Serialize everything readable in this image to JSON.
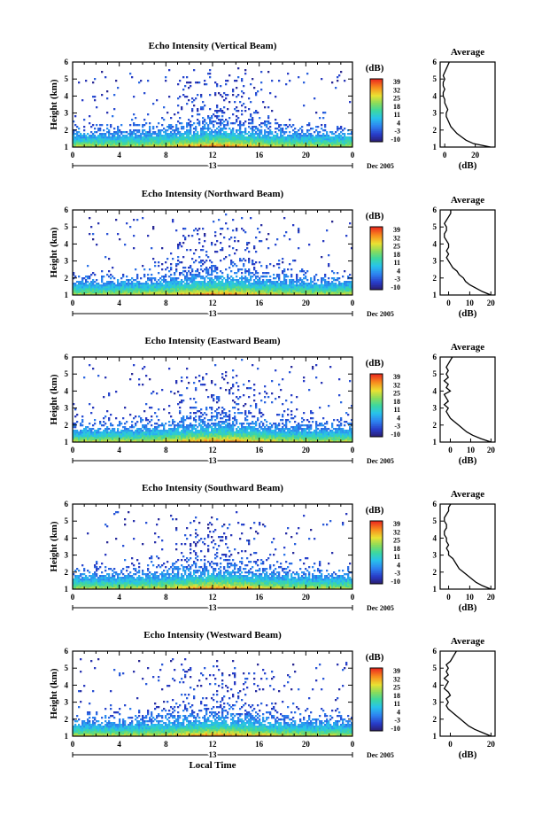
{
  "chart_data": [
    {
      "type": "heatmap",
      "title": "Echo Intensity (Vertical Beam)",
      "ylabel": "Height (km)",
      "ylim": [
        1,
        6
      ],
      "xlim": [
        0,
        24
      ],
      "xticks": [
        "0",
        "4",
        "8",
        "12",
        "16",
        "20",
        "0"
      ],
      "date_marker": "13",
      "date_label": "Dec 2005",
      "colorbar": {
        "label": "(dB)",
        "ticks": [
          "39",
          "32",
          "25",
          "18",
          "11",
          "4",
          "-3",
          "-10"
        ],
        "range": [
          -10,
          39
        ]
      },
      "average": {
        "title": "Average",
        "xlabel": "(dB)",
        "xlim": [
          -3,
          33
        ],
        "xticks": [
          "0",
          "20"
        ],
        "heights": [
          1.0,
          1.2,
          1.4,
          1.6,
          1.8,
          2.0,
          2.2,
          2.4,
          2.6,
          2.8,
          3.0,
          3.2,
          3.4,
          3.6,
          3.8,
          4.0,
          4.2,
          4.4,
          4.6,
          4.8,
          5.0,
          5.2,
          5.4,
          5.6,
          5.8,
          6.0
        ],
        "values": [
          30,
          19,
          14,
          11,
          8,
          6,
          4,
          3,
          2,
          1,
          1,
          2,
          1,
          0,
          0,
          -1,
          -1,
          0,
          -1,
          -1,
          0,
          -1,
          0,
          1,
          2,
          3
        ]
      }
    },
    {
      "type": "heatmap",
      "title": "Echo Intensity (Northward Beam)",
      "ylabel": "Height (km)",
      "ylim": [
        1,
        6
      ],
      "xlim": [
        0,
        24
      ],
      "xticks": [
        "0",
        "4",
        "8",
        "12",
        "16",
        "20",
        "0"
      ],
      "date_marker": "13",
      "date_label": "Dec 2005",
      "colorbar": {
        "label": "(dB)",
        "ticks": [
          "39",
          "32",
          "25",
          "18",
          "11",
          "4",
          "-3",
          "-10"
        ],
        "range": [
          -10,
          39
        ]
      },
      "average": {
        "title": "Average",
        "xlabel": "(dB)",
        "xlim": [
          -4,
          22
        ],
        "xticks": [
          "0",
          "10",
          "20"
        ],
        "heights": [
          1.0,
          1.2,
          1.4,
          1.6,
          1.8,
          2.0,
          2.2,
          2.4,
          2.6,
          2.8,
          3.0,
          3.2,
          3.4,
          3.6,
          3.8,
          4.0,
          4.2,
          4.4,
          4.6,
          4.8,
          5.0,
          5.2,
          5.4,
          5.6,
          5.8,
          6.0
        ],
        "values": [
          20,
          16,
          13,
          10,
          8,
          7,
          5,
          4,
          2,
          1,
          0,
          -1,
          0,
          -1,
          0,
          0,
          -1,
          -2,
          -2,
          -1,
          -1,
          -2,
          -1,
          0,
          1,
          1
        ]
      }
    },
    {
      "type": "heatmap",
      "title": "Echo Intensity (Eastward Beam)",
      "ylabel": "Height (km)",
      "ylim": [
        1,
        6
      ],
      "xlim": [
        0,
        24
      ],
      "xticks": [
        "0",
        "4",
        "8",
        "12",
        "16",
        "20",
        "0"
      ],
      "date_marker": "13",
      "date_label": "Dec 2005",
      "colorbar": {
        "label": "(dB)",
        "ticks": [
          "39",
          "32",
          "25",
          "18",
          "11",
          "4",
          "-3",
          "-10"
        ],
        "range": [
          -10,
          39
        ]
      },
      "average": {
        "title": "Average",
        "xlabel": "(dB)",
        "xlim": [
          -5,
          22
        ],
        "xticks": [
          "0",
          "10",
          "20"
        ],
        "heights": [
          1.0,
          1.2,
          1.4,
          1.6,
          1.8,
          2.0,
          2.2,
          2.4,
          2.6,
          2.8,
          3.0,
          3.2,
          3.4,
          3.6,
          3.8,
          4.0,
          4.2,
          4.4,
          4.6,
          4.8,
          5.0,
          5.2,
          5.4,
          5.6,
          5.8,
          6.0
        ],
        "values": [
          20,
          15,
          11,
          8,
          6,
          4,
          2,
          0,
          -1,
          -2,
          -1,
          -3,
          -1,
          -2,
          -3,
          0,
          -2,
          -1,
          -3,
          -1,
          -2,
          -1,
          -2,
          -1,
          0,
          1
        ]
      }
    },
    {
      "type": "heatmap",
      "title": "Echo Intensity (Southward Beam)",
      "ylabel": "Height (km)",
      "ylim": [
        1,
        6
      ],
      "xlim": [
        0,
        24
      ],
      "xticks": [
        "0",
        "4",
        "8",
        "12",
        "16",
        "20",
        "0"
      ],
      "date_marker": "13",
      "date_label": "Dec 2005",
      "colorbar": {
        "label": "(dB)",
        "ticks": [
          "39",
          "32",
          "25",
          "18",
          "11",
          "4",
          "-3",
          "-10"
        ],
        "range": [
          -10,
          39
        ]
      },
      "average": {
        "title": "Average",
        "xlabel": "(dB)",
        "xlim": [
          -4,
          22
        ],
        "xticks": [
          "0",
          "10",
          "20"
        ],
        "heights": [
          1.0,
          1.2,
          1.4,
          1.6,
          1.8,
          2.0,
          2.2,
          2.4,
          2.6,
          2.8,
          3.0,
          3.2,
          3.4,
          3.6,
          3.8,
          4.0,
          4.2,
          4.4,
          4.6,
          4.8,
          5.0,
          5.2,
          5.4,
          5.6,
          5.8,
          6.0
        ],
        "values": [
          20,
          16,
          13,
          11,
          9,
          7,
          5,
          4,
          3,
          2,
          0,
          0,
          -1,
          0,
          -1,
          -1,
          -2,
          -2,
          -1,
          -1,
          -2,
          -2,
          -1,
          0,
          0,
          1
        ]
      }
    },
    {
      "type": "heatmap",
      "title": "Echo Intensity (Westward Beam)",
      "ylabel": "Height (km)",
      "xlabel": "Local Time",
      "ylim": [
        1,
        6
      ],
      "xlim": [
        0,
        24
      ],
      "xticks": [
        "0",
        "4",
        "8",
        "12",
        "16",
        "20",
        "0"
      ],
      "date_marker": "13",
      "date_label": "Dec 2005",
      "colorbar": {
        "label": "(dB)",
        "ticks": [
          "39",
          "32",
          "25",
          "18",
          "11",
          "4",
          "-3",
          "-10"
        ],
        "range": [
          -10,
          39
        ]
      },
      "average": {
        "title": "Average",
        "xlabel": "(dB)",
        "xlim": [
          -5,
          22
        ],
        "xticks": [
          "0",
          "20"
        ],
        "heights": [
          1.0,
          1.2,
          1.4,
          1.6,
          1.8,
          2.0,
          2.2,
          2.4,
          2.6,
          2.8,
          3.0,
          3.2,
          3.4,
          3.6,
          3.8,
          4.0,
          4.2,
          4.4,
          4.6,
          4.8,
          5.0,
          5.2,
          5.4,
          5.6,
          5.8,
          6.0
        ],
        "values": [
          20,
          16,
          12,
          9,
          7,
          5,
          3,
          1,
          -1,
          -2,
          -1,
          -2,
          0,
          -1,
          -3,
          -2,
          -1,
          -3,
          -1,
          -2,
          -1,
          -2,
          0,
          1,
          2,
          3
        ]
      }
    }
  ]
}
